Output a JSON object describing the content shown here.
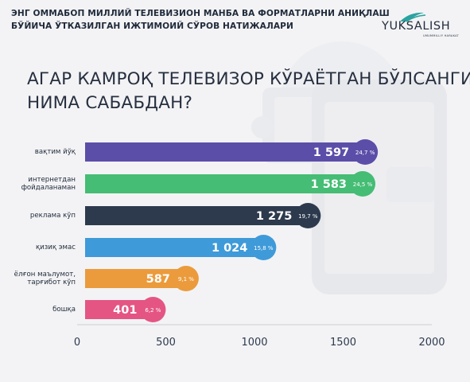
{
  "header": {
    "subtitle_line1": "ЭНГ ОММАБОП МИЛЛИЙ ТЕЛЕВИЗИОН МАНБА ВА ФОРМАТЛАРНИ АНИҚЛАШ",
    "subtitle_line2": "БЎЙИЧА ЎТКАЗИЛГАН ИЖТИМОИЙ СЎРОВ НАТИЖАЛАРИ",
    "logo_text": "YUKSALISH",
    "logo_tagline": "UMUMMILLIY HARAKAT"
  },
  "colors": {
    "background": "#f3f3f5",
    "text": "#1f2a3a",
    "axis": "#c9cdd4"
  },
  "chart_data": {
    "type": "bar",
    "orientation": "horizontal",
    "title_line1": "АГАР КАМРОҚ ТЕЛЕВИЗОР КЎРАЁТГАН БЎЛСАНГИЗ,",
    "title_line2": "НИМА САБАБДАН?",
    "categories": [
      "вақтим йўқ",
      "интернетдан\nфойдаланаман",
      "реклама кўп",
      "қизиқ эмас",
      "ёлғон маълумот,\nтарғибот кўп",
      "бошқа"
    ],
    "values": [
      1597,
      1583,
      1275,
      1024,
      587,
      401
    ],
    "value_labels": [
      "1 597",
      "1 583",
      "1 275",
      "1 024",
      "587",
      "401"
    ],
    "percent_labels": [
      "24,7 %",
      "24,5 %",
      "19,7 %",
      "15,8 %",
      "9,1 %",
      "6,2 %"
    ],
    "bar_colors": [
      "#5b4ea8",
      "#45bd74",
      "#2d3a4e",
      "#3f9ad9",
      "#eb9b3c",
      "#e45584"
    ],
    "xlim": [
      0,
      2000
    ],
    "xticks": [
      0,
      500,
      1000,
      1500,
      2000
    ],
    "xtick_labels": [
      "0",
      "500",
      "1000",
      "1500",
      "2000"
    ],
    "grid": false,
    "legend": "none"
  }
}
